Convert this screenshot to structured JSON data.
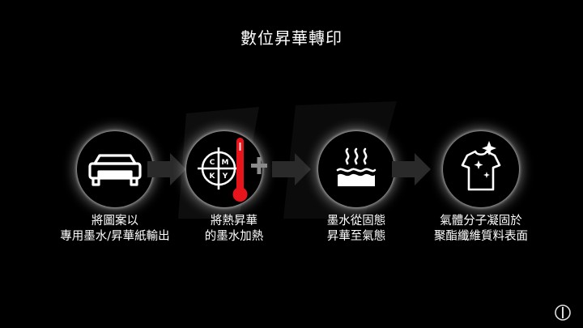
{
  "title": "數位昇華轉印",
  "steps": [
    {
      "icon": "printer-icon",
      "line1": "將圖案以",
      "line2": "專用墨水/昇華紙輸出"
    },
    {
      "icon": "cmyk-thermometer-icon",
      "line1": "將熱昇華",
      "line2": "的墨水加熱",
      "cmyk": [
        "C",
        "M",
        "K",
        "Y"
      ]
    },
    {
      "icon": "heat-vapor-icon",
      "line1": "墨水從固態",
      "line2": "昇華至氣態"
    },
    {
      "icon": "sparkle-shirt-icon",
      "line1": "氣體分子凝固於",
      "line2": "聚酯纖維質料表面"
    }
  ],
  "colors": {
    "background": "#000000",
    "text": "#ffffff",
    "thermometer": "#e8141b",
    "arrow": "#2a2a2a"
  }
}
